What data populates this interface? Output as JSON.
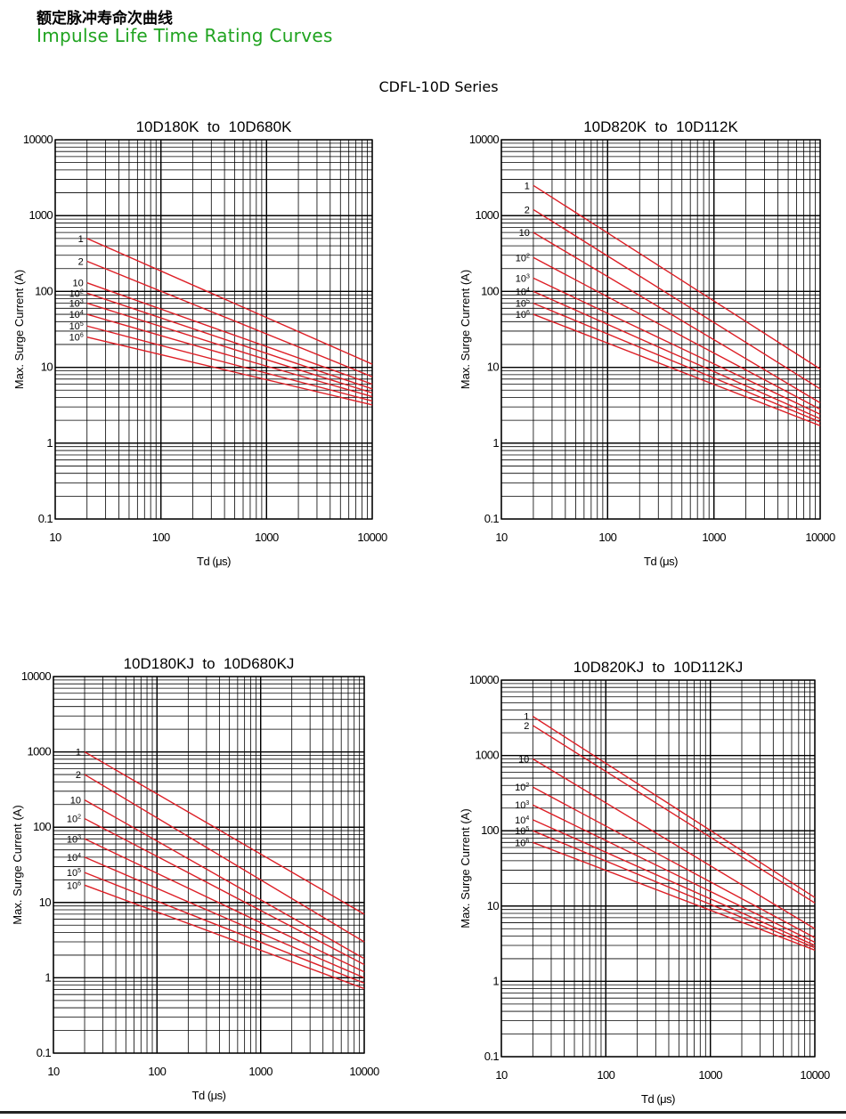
{
  "header": {
    "title_cn": "额定脉冲寿命次曲线",
    "title_en": "Impulse Life Time Rating Curves",
    "series": "CDFL-10D Series"
  },
  "colors": {
    "curve": "#dd1f26",
    "grid": "#000000",
    "title_en": "#1fa31f"
  },
  "chart_data": [
    {
      "type": "line",
      "title": "10D180K  to  10D680K",
      "xlabel": "Td (μs)",
      "ylabel": "Max. Surge Current (A)",
      "xscale": "log",
      "yscale": "log",
      "xlim": [
        10,
        10000
      ],
      "ylim": [
        0.1,
        10000
      ],
      "xticks": [
        "10",
        "100",
        "1000",
        "10000"
      ],
      "yticks": [
        "0.1",
        "1",
        "10",
        "100",
        "1000",
        "10000"
      ],
      "grid": true,
      "series": [
        {
          "name": "1",
          "x": [
            20,
            10000
          ],
          "y": [
            500,
            11
          ]
        },
        {
          "name": "2",
          "x": [
            20,
            10000
          ],
          "y": [
            250,
            7.5
          ]
        },
        {
          "name": "10",
          "x": [
            20,
            10000
          ],
          "y": [
            130,
            6
          ]
        },
        {
          "name": "10^2",
          "x": [
            20,
            10000
          ],
          "y": [
            95,
            5.2
          ]
        },
        {
          "name": "10^3",
          "x": [
            20,
            10000
          ],
          "y": [
            70,
            4.6
          ]
        },
        {
          "name": "10^4",
          "x": [
            20,
            10000
          ],
          "y": [
            50,
            4.1
          ]
        },
        {
          "name": "10^5",
          "x": [
            20,
            10000
          ],
          "y": [
            35,
            3.6
          ]
        },
        {
          "name": "10^6",
          "x": [
            20,
            10000
          ],
          "y": [
            25,
            3.2
          ]
        }
      ]
    },
    {
      "type": "line",
      "title": "10D820K  to  10D112K",
      "xlabel": "Td (μs)",
      "ylabel": "Max. Surge Current (A)",
      "xscale": "log",
      "yscale": "log",
      "xlim": [
        10,
        10000
      ],
      "ylim": [
        0.1,
        10000
      ],
      "xticks": [
        "10",
        "100",
        "1000",
        "10000"
      ],
      "yticks": [
        "0.1",
        "1",
        "10",
        "100",
        "1000",
        "10000"
      ],
      "grid": true,
      "series": [
        {
          "name": "1",
          "x": [
            20,
            10000
          ],
          "y": [
            2500,
            9.5
          ]
        },
        {
          "name": "2",
          "x": [
            20,
            10000
          ],
          "y": [
            1200,
            5.2
          ]
        },
        {
          "name": "10",
          "x": [
            20,
            10000
          ],
          "y": [
            600,
            3.4
          ]
        },
        {
          "name": "10^2",
          "x": [
            20,
            10000
          ],
          "y": [
            280,
            2.8
          ]
        },
        {
          "name": "10^3",
          "x": [
            20,
            10000
          ],
          "y": [
            150,
            2.4
          ]
        },
        {
          "name": "10^4",
          "x": [
            20,
            10000
          ],
          "y": [
            100,
            2.1
          ]
        },
        {
          "name": "10^5",
          "x": [
            20,
            10000
          ],
          "y": [
            70,
            1.9
          ]
        },
        {
          "name": "10^6",
          "x": [
            20,
            10000
          ],
          "y": [
            50,
            1.7
          ]
        }
      ]
    },
    {
      "type": "line",
      "title": "10D180KJ  to  10D680KJ",
      "xlabel": "Td (μs)",
      "ylabel": "Max. Surge Current (A)",
      "xscale": "log",
      "yscale": "log",
      "xlim": [
        10,
        10000
      ],
      "ylim": [
        0.1,
        10000
      ],
      "xticks": [
        "10",
        "100",
        "1000",
        "10000"
      ],
      "yticks": [
        "0.1",
        "1",
        "10",
        "100",
        "1000",
        "10000"
      ],
      "grid": true,
      "series": [
        {
          "name": "1",
          "x": [
            20,
            10000
          ],
          "y": [
            1000,
            7
          ]
        },
        {
          "name": "2",
          "x": [
            20,
            10000
          ],
          "y": [
            500,
            3
          ]
        },
        {
          "name": "10",
          "x": [
            20,
            10000
          ],
          "y": [
            230,
            1.8
          ]
        },
        {
          "name": "10^2",
          "x": [
            20,
            10000
          ],
          "y": [
            130,
            1.5
          ]
        },
        {
          "name": "10^3",
          "x": [
            20,
            10000
          ],
          "y": [
            70,
            1.2
          ]
        },
        {
          "name": "10^4",
          "x": [
            20,
            10000
          ],
          "y": [
            40,
            1
          ]
        },
        {
          "name": "10^5",
          "x": [
            20,
            10000
          ],
          "y": [
            25,
            0.85
          ]
        },
        {
          "name": "10^6",
          "x": [
            20,
            10000
          ],
          "y": [
            17,
            0.72
          ]
        }
      ]
    },
    {
      "type": "line",
      "title": "10D820KJ  to  10D112KJ",
      "xlabel": "Td (μs)",
      "ylabel": "Max. Surge Current (A)",
      "xscale": "log",
      "yscale": "log",
      "xlim": [
        10,
        10000
      ],
      "ylim": [
        0.1,
        10000
      ],
      "xticks": [
        "10",
        "100",
        "1000",
        "10000"
      ],
      "yticks": [
        "0.1",
        "1",
        "10",
        "100",
        "1000",
        "10000"
      ],
      "grid": true,
      "series": [
        {
          "name": "1",
          "x": [
            20,
            10000
          ],
          "y": [
            3300,
            13
          ]
        },
        {
          "name": "2",
          "x": [
            20,
            10000
          ],
          "y": [
            2500,
            11
          ]
        },
        {
          "name": "10",
          "x": [
            20,
            10000
          ],
          "y": [
            900,
            5
          ]
        },
        {
          "name": "10^2",
          "x": [
            20,
            10000
          ],
          "y": [
            380,
            3.8
          ]
        },
        {
          "name": "10^3",
          "x": [
            20,
            10000
          ],
          "y": [
            220,
            3.3
          ]
        },
        {
          "name": "10^4",
          "x": [
            20,
            10000
          ],
          "y": [
            140,
            3
          ]
        },
        {
          "name": "10^5",
          "x": [
            20,
            10000
          ],
          "y": [
            100,
            2.8
          ]
        },
        {
          "name": "10^6",
          "x": [
            20,
            10000
          ],
          "y": [
            70,
            2.6
          ]
        }
      ]
    }
  ]
}
